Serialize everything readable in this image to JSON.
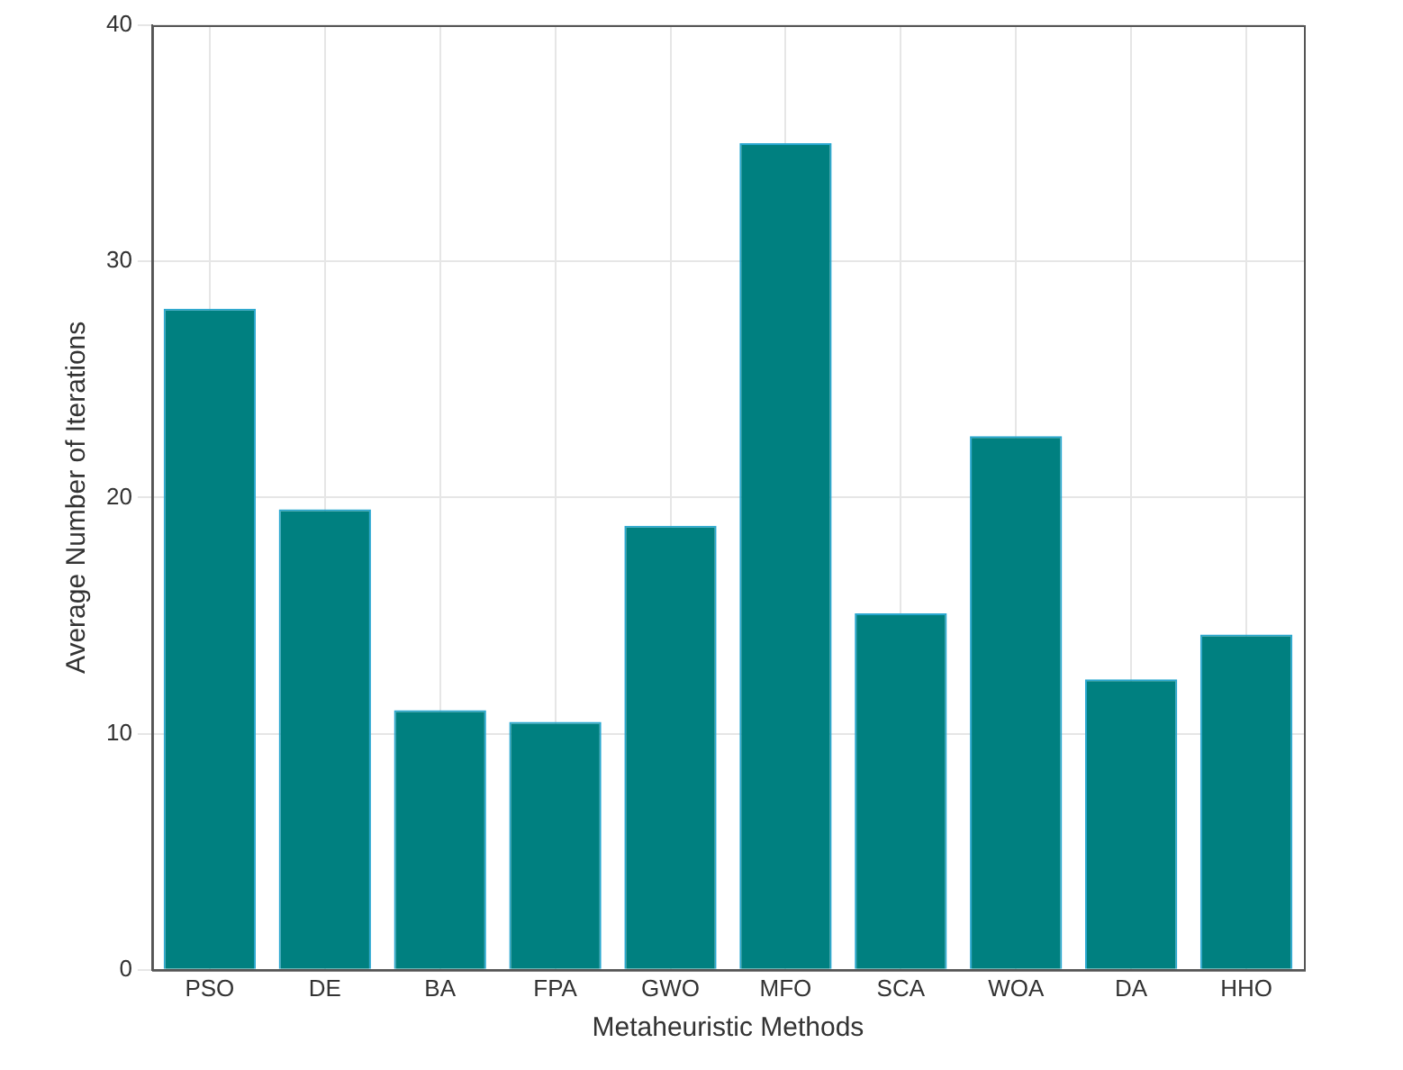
{
  "chart_data": {
    "type": "bar",
    "xlabel": "Metaheuristic Methods",
    "ylabel": "Average Number of Iterations",
    "categories": [
      "PSO",
      "DE",
      "BA",
      "FPA",
      "GWO",
      "MFO",
      "SCA",
      "WOA",
      "DA",
      "HHO"
    ],
    "values": [
      28,
      19.5,
      11,
      10.5,
      18.8,
      35,
      15.1,
      22.6,
      12.3,
      14.2
    ],
    "color": "#008080",
    "ylim": [
      0,
      40
    ],
    "yticks": [
      0,
      10,
      20,
      30,
      40
    ],
    "grid": true
  }
}
